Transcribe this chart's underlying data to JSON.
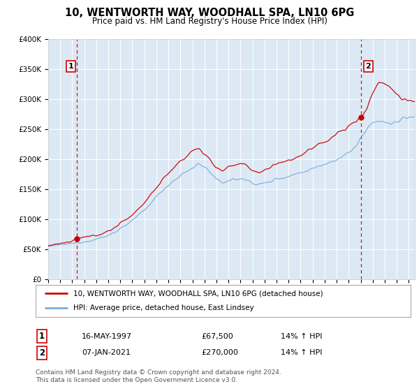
{
  "title": "10, WENTWORTH WAY, WOODHALL SPA, LN10 6PG",
  "subtitle": "Price paid vs. HM Land Registry's House Price Index (HPI)",
  "legend_line1": "10, WENTWORTH WAY, WOODHALL SPA, LN10 6PG (detached house)",
  "legend_line2": "HPI: Average price, detached house, East Lindsey",
  "sale1_label": "1",
  "sale1_date": "16-MAY-1997",
  "sale1_price": "£67,500",
  "sale1_hpi": "14% ↑ HPI",
  "sale1_x": 1997.37,
  "sale1_y": 67500,
  "sale2_label": "2",
  "sale2_date": "07-JAN-2021",
  "sale2_price": "£270,000",
  "sale2_hpi": "14% ↑ HPI",
  "sale2_x": 2021.03,
  "sale2_y": 270000,
  "ylim": [
    0,
    400000
  ],
  "xlim_start": 1995.0,
  "xlim_end": 2025.5,
  "background_color": "#dce9f5",
  "red_line_color": "#cc0000",
  "blue_line_color": "#7aacdb",
  "sale_dot_color": "#cc0000",
  "vline_color": "#cc0000",
  "footer": "Contains HM Land Registry data © Crown copyright and database right 2024.\nThis data is licensed under the Open Government Licence v3.0."
}
